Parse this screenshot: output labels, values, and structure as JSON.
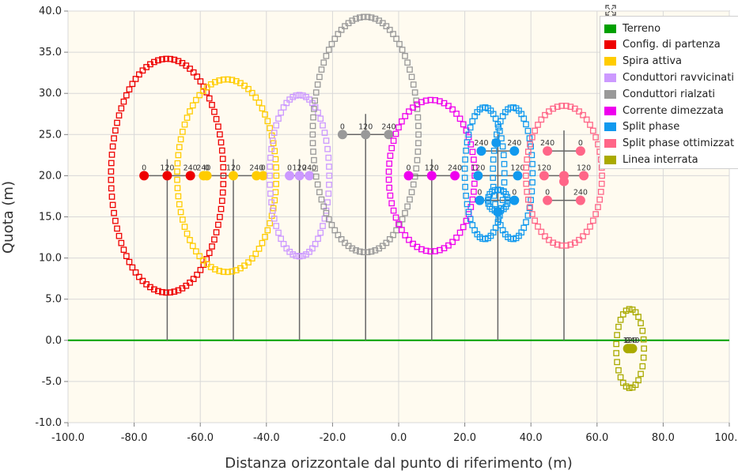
{
  "chart_data": {
    "type": "scatter",
    "xlabel": "Distanza orizzontale dal punto di riferimento (m)",
    "ylabel": "Quota (m)",
    "xlim": [
      -100,
      100
    ],
    "ylim": [
      -10,
      40
    ],
    "xticks": [
      "-100.0",
      "-80.0",
      "-60.0",
      "-40.0",
      "-20.0",
      "0.0",
      "20.0",
      "40.0",
      "60.0",
      "80.0",
      "100.0"
    ],
    "yticks": [
      "40.0",
      "35.0",
      "30.0",
      "25.0",
      "20.0",
      "15.0",
      "10.0",
      "5.0",
      "0.0",
      "-5.0",
      "-10.0"
    ],
    "legend_position": "top-right",
    "series": [
      {
        "name": "Terreno",
        "color": "#00a000",
        "ground": [
          [
            -100,
            0
          ],
          [
            100,
            0
          ]
        ]
      },
      {
        "name": "Config. di partenza",
        "color": "#ee0000",
        "contour": {
          "cx": -70,
          "cy": 20,
          "rx": 17,
          "ry": 14.2
        },
        "poles": [
          {
            "x": -70,
            "top": 22,
            "arms": [
              [
                -77,
                20
              ],
              [
                -63,
                20
              ]
            ]
          }
        ],
        "conductors": [
          {
            "x": -77,
            "y": 20,
            "label": "0"
          },
          {
            "x": -70,
            "y": 20,
            "label": "120"
          },
          {
            "x": -63,
            "y": 20,
            "label": "240"
          }
        ]
      },
      {
        "name": "Spira attiva",
        "color": "#ffcc00",
        "contour": {
          "cx": -52,
          "cy": 20,
          "rx": 15,
          "ry": 11.7
        },
        "poles": [
          {
            "x": -50,
            "top": 22,
            "arms": [
              [
                -58.5,
                20
              ],
              [
                -41,
                20
              ]
            ]
          }
        ],
        "conductors": [
          {
            "x": -59,
            "y": 20,
            "label": "240"
          },
          {
            "x": -58,
            "y": 20,
            "label": "0"
          },
          {
            "x": -50,
            "y": 20,
            "label": "120"
          },
          {
            "x": -43,
            "y": 20,
            "label": "240"
          },
          {
            "x": -41,
            "y": 20,
            "label": "0"
          }
        ]
      },
      {
        "name": "Conduttori ravvicinati",
        "color": "#cc99ff",
        "contour": {
          "cx": -30,
          "cy": 20,
          "rx": 9,
          "ry": 9.8
        },
        "poles": [
          {
            "x": -30,
            "top": 22,
            "arms": [
              [
                -33,
                20
              ],
              [
                -27,
                20
              ]
            ]
          }
        ],
        "conductors": [
          {
            "x": -33,
            "y": 20,
            "label": "0"
          },
          {
            "x": -30,
            "y": 20,
            "label": "120"
          },
          {
            "x": -27,
            "y": 20,
            "label": "240"
          }
        ]
      },
      {
        "name": "Conduttori rialzati",
        "color": "#999999",
        "contour": {
          "cx": -10,
          "cy": 25,
          "rx": 16,
          "ry": 14.3
        },
        "poles": [
          {
            "x": -10,
            "top": 27.5,
            "arms": [
              [
                -17,
                25
              ],
              [
                -3,
                25
              ]
            ]
          }
        ],
        "conductors": [
          {
            "x": -17,
            "y": 25,
            "label": "0"
          },
          {
            "x": -10,
            "y": 25,
            "label": "120"
          },
          {
            "x": -3,
            "y": 25,
            "label": "240"
          }
        ]
      },
      {
        "name": "Corrente dimezzata",
        "color": "#ee00ee",
        "contour": {
          "cx": 10,
          "cy": 20,
          "rx": 13,
          "ry": 9.2
        },
        "poles": [
          {
            "x": 10,
            "top": 22,
            "arms": [
              [
                3,
                20
              ],
              [
                17,
                20
              ]
            ]
          }
        ],
        "conductors": [
          {
            "x": 3,
            "y": 20,
            "label": "0"
          },
          {
            "x": 10,
            "y": 20,
            "label": "120"
          },
          {
            "x": 17,
            "y": 20,
            "label": "240"
          }
        ]
      },
      {
        "name": "Split phase",
        "color": "#1199ee",
        "lobes": [
          {
            "cx": 26,
            "cy": 20.3,
            "rx": 6,
            "ry": 8
          },
          {
            "cx": 34.5,
            "cy": 20.3,
            "rx": 6,
            "ry": 8
          },
          {
            "cx": 30,
            "cy": 17,
            "rx": 3,
            "ry": 1.3
          }
        ],
        "poles": [
          {
            "x": 30,
            "top": 25,
            "arms": [
              [
                25,
                23
              ],
              [
                35,
                23
              ],
              [
                24,
                20
              ],
              [
                36,
                20
              ],
              [
                24,
                17
              ],
              [
                35.5,
                17
              ]
            ]
          }
        ],
        "conductors": [
          {
            "x": 25,
            "y": 23,
            "label": "240"
          },
          {
            "x": 29.5,
            "y": 24,
            "label": ""
          },
          {
            "x": 35,
            "y": 23,
            "label": "240"
          },
          {
            "x": 24,
            "y": 20,
            "label": "120"
          },
          {
            "x": 36,
            "y": 20,
            "label": "120"
          },
          {
            "x": 24.5,
            "y": 17,
            "label": "0"
          },
          {
            "x": 35,
            "y": 17,
            "label": "0"
          },
          {
            "x": 30,
            "y": 15.6,
            "label": ""
          }
        ]
      },
      {
        "name": "Split phase ottimizzat",
        "color": "#ff6688",
        "contour": {
          "cx": 50,
          "cy": 20,
          "rx": 11.5,
          "ry": 8.5
        },
        "poles": [
          {
            "x": 50,
            "top": 25.5,
            "arms": [
              [
                45,
                23
              ],
              [
                55,
                23
              ],
              [
                44,
                20
              ],
              [
                56,
                20
              ],
              [
                45,
                17
              ],
              [
                55,
                17
              ]
            ]
          }
        ],
        "conductors": [
          {
            "x": 45,
            "y": 23,
            "label": "240"
          },
          {
            "x": 55,
            "y": 23,
            "label": "0"
          },
          {
            "x": 44,
            "y": 20,
            "label": "120"
          },
          {
            "x": 56,
            "y": 20,
            "label": "120"
          },
          {
            "x": 45,
            "y": 17,
            "label": "0"
          },
          {
            "x": 55,
            "y": 17,
            "label": "240"
          },
          {
            "x": 50,
            "y": 20,
            "label": ""
          },
          {
            "x": 50,
            "y": 19.3,
            "label": ""
          }
        ]
      },
      {
        "name": "Linea interrata",
        "color": "#aaaa00",
        "contour": {
          "cx": 70,
          "cy": -1,
          "rx": 4.2,
          "ry": 4.8
        },
        "poles": [],
        "conductors": [
          {
            "x": 69.3,
            "y": -1,
            "label": "0"
          },
          {
            "x": 70,
            "y": -1,
            "label": "120"
          },
          {
            "x": 70.7,
            "y": -1,
            "label": "240"
          }
        ]
      }
    ]
  }
}
